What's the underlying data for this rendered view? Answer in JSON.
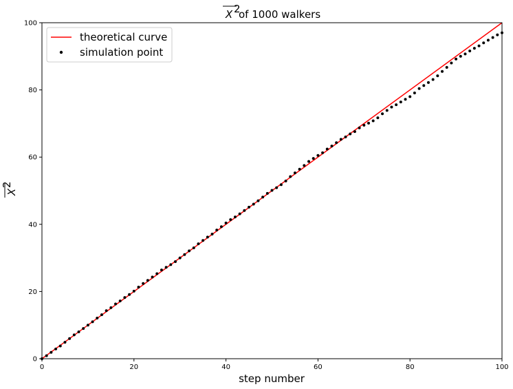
{
  "chart_data": {
    "type": "scatter",
    "title": "of 1000 walkers",
    "title_math": "X",
    "title_math_exponent": "2",
    "xlabel": "step number",
    "ylabel": "X",
    "ylabel_exponent": "2",
    "xlim": [
      0,
      100
    ],
    "ylim": [
      0,
      100
    ],
    "xticks": [
      "0",
      "20",
      "40",
      "60",
      "80",
      "100"
    ],
    "yticks": [
      "0",
      "20",
      "40",
      "60",
      "80",
      "100"
    ],
    "grid": false,
    "legend_position": "upper-left",
    "series": [
      {
        "name": "theoretical curve",
        "kind": "line",
        "color": "#ff0000",
        "x": [
          0,
          100
        ],
        "y": [
          0,
          100
        ]
      },
      {
        "name": "simulation point",
        "kind": "scatter",
        "color": "#000000",
        "x": [
          0,
          1,
          2,
          3,
          4,
          5,
          6,
          7,
          8,
          9,
          10,
          11,
          12,
          13,
          14,
          15,
          16,
          17,
          18,
          19,
          20,
          21,
          22,
          23,
          24,
          25,
          26,
          27,
          28,
          29,
          30,
          31,
          32,
          33,
          34,
          35,
          36,
          37,
          38,
          39,
          40,
          41,
          42,
          43,
          44,
          45,
          46,
          47,
          48,
          49,
          50,
          51,
          52,
          53,
          54,
          55,
          56,
          57,
          58,
          59,
          60,
          61,
          62,
          63,
          64,
          65,
          66,
          67,
          68,
          69,
          70,
          71,
          72,
          73,
          74,
          75,
          76,
          77,
          78,
          79,
          80,
          81,
          82,
          83,
          84,
          85,
          86,
          87,
          88,
          89,
          90,
          91,
          92,
          93,
          94,
          95,
          96,
          97,
          98,
          99,
          100
        ],
        "y": [
          0,
          0.9,
          1.9,
          2.9,
          3.8,
          4.9,
          6.0,
          7.1,
          8.0,
          9.0,
          10.0,
          11.0,
          12.1,
          13.1,
          14.3,
          15.2,
          16.3,
          17.2,
          18.2,
          19.1,
          20.1,
          21.3,
          22.4,
          23.3,
          24.3,
          25.3,
          26.4,
          27.2,
          28.0,
          28.9,
          30.0,
          31.0,
          32.1,
          33.0,
          34.2,
          35.2,
          36.2,
          37.1,
          38.3,
          39.3,
          40.4,
          41.4,
          42.2,
          43.1,
          44.1,
          45.1,
          46.0,
          47.0,
          48.1,
          49.2,
          50.1,
          50.9,
          51.8,
          52.9,
          54.2,
          55.3,
          56.4,
          57.5,
          58.7,
          59.6,
          60.5,
          61.3,
          62.4,
          63.3,
          64.3,
          65.3,
          66.0,
          66.9,
          67.6,
          68.7,
          69.5,
          70.1,
          70.8,
          71.7,
          72.9,
          73.9,
          74.9,
          75.6,
          76.4,
          77.2,
          78.0,
          79.1,
          80.4,
          81.3,
          82.2,
          83.1,
          84.2,
          85.5,
          86.7,
          88.0,
          89.2,
          90.0,
          90.7,
          91.6,
          92.4,
          93.1,
          94.0,
          94.8,
          95.6,
          96.4,
          97.0
        ]
      }
    ]
  }
}
